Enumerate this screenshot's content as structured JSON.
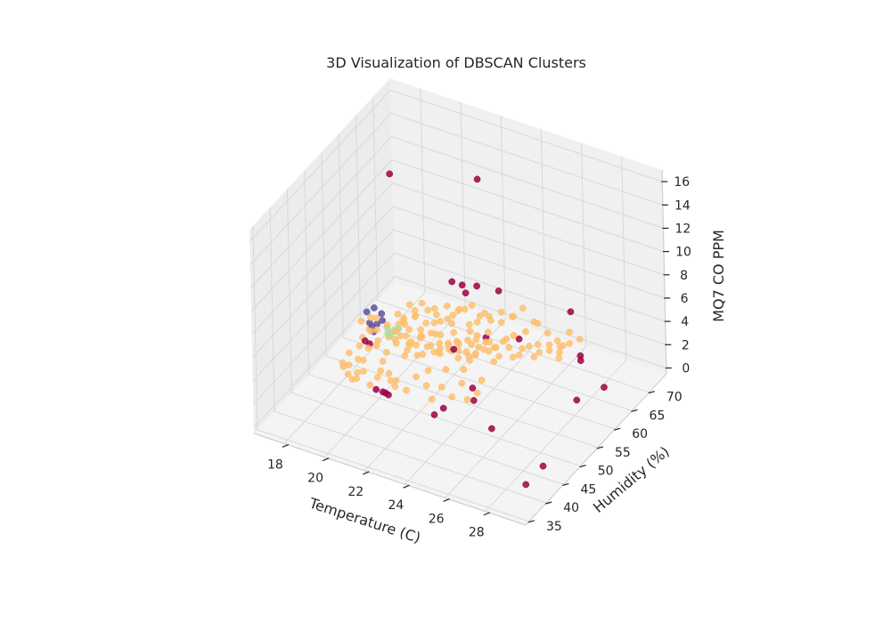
{
  "chart_data": {
    "type": "scatter",
    "title": "3D Visualization of DBSCAN Clusters",
    "xlabel": "Temperature (C)",
    "ylabel": "Humidity (%)",
    "zlabel": "MQ7 CO PPM",
    "xlim": [
      16.5,
      30.0
    ],
    "ylim": [
      34.0,
      75.0
    ],
    "zlim": [
      -0.5,
      17.0
    ],
    "x_ticks": [
      18,
      20,
      22,
      24,
      26,
      28
    ],
    "y_ticks": [
      35,
      40,
      45,
      50,
      55,
      60,
      65,
      70
    ],
    "z_ticks": [
      0,
      2,
      4,
      6,
      8,
      10,
      12,
      14,
      16
    ],
    "grid": true,
    "legend": "none",
    "series": [
      {
        "color": "#fdbf6f",
        "points": [
          [
            19.2,
            52.5,
            4.0
          ],
          [
            19.6,
            52.0,
            4.5
          ],
          [
            20.0,
            53.0,
            3.8
          ],
          [
            20.4,
            52.8,
            4.6
          ],
          [
            20.8,
            53.5,
            4.2
          ],
          [
            21.2,
            54.0,
            3.5
          ],
          [
            21.6,
            53.2,
            4.8
          ],
          [
            22.0,
            54.5,
            3.2
          ],
          [
            22.4,
            53.8,
            4.4
          ],
          [
            22.8,
            55.0,
            3.6
          ],
          [
            23.2,
            54.2,
            4.9
          ],
          [
            23.6,
            55.5,
            3.1
          ],
          [
            24.0,
            54.8,
            4.0
          ],
          [
            20.2,
            55.2,
            3.3
          ],
          [
            20.6,
            56.0,
            2.8
          ],
          [
            21.0,
            56.5,
            3.9
          ],
          [
            21.4,
            57.0,
            2.6
          ],
          [
            21.8,
            56.2,
            4.1
          ],
          [
            22.2,
            57.5,
            3.0
          ],
          [
            22.6,
            56.8,
            4.5
          ],
          [
            23.0,
            58.0,
            2.7
          ],
          [
            23.4,
            57.2,
            3.8
          ],
          [
            23.8,
            58.5,
            3.2
          ],
          [
            24.2,
            57.8,
            4.3
          ],
          [
            19.5,
            50.0,
            3.5
          ],
          [
            19.9,
            50.5,
            4.2
          ],
          [
            20.3,
            49.5,
            3.0
          ],
          [
            20.7,
            50.8,
            4.7
          ],
          [
            21.1,
            51.2,
            3.4
          ],
          [
            21.5,
            50.2,
            5.0
          ],
          [
            21.9,
            51.8,
            3.8
          ],
          [
            22.3,
            51.0,
            2.9
          ],
          [
            22.7,
            52.2,
            4.6
          ],
          [
            23.1,
            51.5,
            3.3
          ],
          [
            23.5,
            52.8,
            4.1
          ],
          [
            23.9,
            52.0,
            3.6
          ],
          [
            24.3,
            53.2,
            4.8
          ],
          [
            24.7,
            52.5,
            3.0
          ],
          [
            25.1,
            53.8,
            4.4
          ],
          [
            19.0,
            51.0,
            5.2
          ],
          [
            19.4,
            51.5,
            5.6
          ],
          [
            19.8,
            50.8,
            6.0
          ],
          [
            20.2,
            51.6,
            5.4
          ],
          [
            20.6,
            52.4,
            6.3
          ],
          [
            21.0,
            52.0,
            5.8
          ],
          [
            21.4,
            52.8,
            6.5
          ],
          [
            21.8,
            52.3,
            5.1
          ],
          [
            22.2,
            53.6,
            6.1
          ],
          [
            22.6,
            53.0,
            5.5
          ],
          [
            23.0,
            54.0,
            6.4
          ],
          [
            23.4,
            53.4,
            5.2
          ],
          [
            23.8,
            54.6,
            6.0
          ],
          [
            24.2,
            54.0,
            5.7
          ],
          [
            24.6,
            55.2,
            6.2
          ],
          [
            25.0,
            54.6,
            5.3
          ],
          [
            25.4,
            55.8,
            5.9
          ],
          [
            20.5,
            54.5,
            5.0
          ],
          [
            21.0,
            55.0,
            5.5
          ],
          [
            21.5,
            55.8,
            6.1
          ],
          [
            22.0,
            56.5,
            5.2
          ],
          [
            22.5,
            57.2,
            5.8
          ],
          [
            23.0,
            57.8,
            6.4
          ],
          [
            23.5,
            58.4,
            5.4
          ],
          [
            24.0,
            59.0,
            6.0
          ],
          [
            24.5,
            59.6,
            5.6
          ],
          [
            25.0,
            60.2,
            6.2
          ],
          [
            25.5,
            60.8,
            5.0
          ],
          [
            26.0,
            61.4,
            5.8
          ],
          [
            19.3,
            53.5,
            2.5
          ],
          [
            19.7,
            54.0,
            2.0
          ],
          [
            20.1,
            54.6,
            2.8
          ],
          [
            20.5,
            55.4,
            2.2
          ],
          [
            20.9,
            56.0,
            1.8
          ],
          [
            21.3,
            56.6,
            2.6
          ],
          [
            21.7,
            57.4,
            2.1
          ],
          [
            22.1,
            58.0,
            2.9
          ],
          [
            22.5,
            58.6,
            2.3
          ],
          [
            22.9,
            59.2,
            1.9
          ],
          [
            23.3,
            59.8,
            2.7
          ],
          [
            23.7,
            60.4,
            2.4
          ],
          [
            24.1,
            61.0,
            2.0
          ],
          [
            24.5,
            61.6,
            2.8
          ],
          [
            24.9,
            62.2,
            2.2
          ],
          [
            25.3,
            62.8,
            3.0
          ],
          [
            25.7,
            63.4,
            2.5
          ],
          [
            26.1,
            64.0,
            3.2
          ],
          [
            26.5,
            64.6,
            2.6
          ],
          [
            26.9,
            65.2,
            3.4
          ],
          [
            19.1,
            49.0,
            1.5
          ],
          [
            19.5,
            48.5,
            2.0
          ],
          [
            19.9,
            48.0,
            1.2
          ],
          [
            20.3,
            48.8,
            2.4
          ],
          [
            20.7,
            49.4,
            1.6
          ],
          [
            21.1,
            48.6,
            2.1
          ],
          [
            21.5,
            49.2,
            1.3
          ],
          [
            21.9,
            49.8,
            2.5
          ],
          [
            22.3,
            50.4,
            1.8
          ],
          [
            22.7,
            49.6,
            1.1
          ],
          [
            23.1,
            50.2,
            2.2
          ],
          [
            23.5,
            50.8,
            1.4
          ],
          [
            23.9,
            51.4,
            2.6
          ],
          [
            24.3,
            50.6,
            1.7
          ],
          [
            24.7,
            51.2,
            2.3
          ],
          [
            18.2,
            50.0,
            1.5
          ],
          [
            18.4,
            50.8,
            2.2
          ],
          [
            18.6,
            49.2,
            1.0
          ],
          [
            18.8,
            51.5,
            2.8
          ],
          [
            18.5,
            48.5,
            1.8
          ],
          [
            18.9,
            47.8,
            2.4
          ],
          [
            19.2,
            47.0,
            1.6
          ],
          [
            19.5,
            46.5,
            2.0
          ],
          [
            25.5,
            57.0,
            4.0
          ],
          [
            25.8,
            58.0,
            4.6
          ],
          [
            26.2,
            59.0,
            3.8
          ],
          [
            26.5,
            58.5,
            5.2
          ],
          [
            26.8,
            60.0,
            4.4
          ],
          [
            27.1,
            61.0,
            3.6
          ],
          [
            27.4,
            60.5,
            5.0
          ],
          [
            27.0,
            62.0,
            4.2
          ],
          [
            25.2,
            56.0,
            5.5
          ],
          [
            25.6,
            56.8,
            6.0
          ],
          [
            24.8,
            56.2,
            4.7
          ],
          [
            24.4,
            55.6,
            5.1
          ],
          [
            26.3,
            62.5,
            4.8
          ],
          [
            26.6,
            63.5,
            4.0
          ],
          [
            27.3,
            63.0,
            5.3
          ],
          [
            27.6,
            64.2,
            4.5
          ],
          [
            20.0,
            57.5,
            4.0
          ],
          [
            20.4,
            58.4,
            4.6
          ],
          [
            20.8,
            59.2,
            3.5
          ],
          [
            21.2,
            60.0,
            4.2
          ],
          [
            21.6,
            60.8,
            3.8
          ],
          [
            22.0,
            61.6,
            4.5
          ],
          [
            22.4,
            62.4,
            3.3
          ],
          [
            22.8,
            63.2,
            4.0
          ],
          [
            23.2,
            64.0,
            3.6
          ],
          [
            23.6,
            64.8,
            4.3
          ],
          [
            24.0,
            65.6,
            3.9
          ],
          [
            24.4,
            66.4,
            4.6
          ],
          [
            24.8,
            67.2,
            3.4
          ],
          [
            21.0,
            53.5,
            7.0
          ],
          [
            21.5,
            54.2,
            7.2
          ],
          [
            22.0,
            54.9,
            6.8
          ],
          [
            22.5,
            55.6,
            7.1
          ],
          [
            23.0,
            56.3,
            6.9
          ],
          [
            23.5,
            57.0,
            7.3
          ],
          [
            24.0,
            57.7,
            6.7
          ],
          [
            22.2,
            55.0,
            3.0
          ],
          [
            22.6,
            55.4,
            3.5
          ],
          [
            23.0,
            55.8,
            4.0
          ],
          [
            23.4,
            56.2,
            4.5
          ],
          [
            23.8,
            56.6,
            5.0
          ],
          [
            21.3,
            51.6,
            4.3
          ],
          [
            21.7,
            52.4,
            4.9
          ],
          [
            22.1,
            53.2,
            5.3
          ],
          [
            19.6,
            55.8,
            3.1
          ],
          [
            19.9,
            56.6,
            3.7
          ],
          [
            20.3,
            57.2,
            3.3
          ],
          [
            18.7,
            53.0,
            3.0
          ],
          [
            18.9,
            53.8,
            3.6
          ],
          [
            19.3,
            48.2,
            3.0
          ],
          [
            19.7,
            47.4,
            3.4
          ],
          [
            20.5,
            46.8,
            2.6
          ],
          [
            21.0,
            47.2,
            3.1
          ],
          [
            21.4,
            46.6,
            2.4
          ]
        ]
      },
      {
        "color": "#9e0142",
        "points": [
          [
            19.0,
            60.0,
            15.0
          ],
          [
            22.5,
            65.0,
            15.0
          ],
          [
            26.5,
            68.0,
            5.0
          ],
          [
            28.0,
            62.0,
            4.0
          ],
          [
            28.1,
            61.5,
            3.8
          ],
          [
            29.0,
            55.0,
            3.0
          ],
          [
            29.5,
            60.0,
            2.8
          ],
          [
            29.0,
            45.0,
            0.5
          ],
          [
            29.0,
            40.0,
            0.5
          ],
          [
            27.0,
            42.0,
            3.5
          ],
          [
            23.0,
            48.5,
            0.3
          ],
          [
            23.2,
            50.0,
            0.5
          ],
          [
            24.2,
            53.0,
            0.8
          ],
          [
            23.8,
            55.0,
            1.0
          ],
          [
            19.0,
            52.0,
            3.2
          ],
          [
            19.4,
            51.0,
            3.5
          ],
          [
            20.2,
            48.0,
            1.0
          ],
          [
            20.5,
            48.2,
            0.9
          ],
          [
            20.6,
            48.4,
            0.8
          ],
          [
            20.9,
            47.5,
            1.1
          ],
          [
            22.0,
            60.0,
            7.5
          ],
          [
            22.3,
            61.2,
            7.0
          ],
          [
            22.8,
            62.5,
            6.8
          ],
          [
            23.8,
            63.0,
            6.8
          ],
          [
            22.5,
            61.0,
            6.5
          ],
          [
            24.0,
            58.0,
            4.5
          ],
          [
            22.9,
            55.0,
            3.8
          ],
          [
            25.3,
            60.0,
            4.5
          ]
        ]
      },
      {
        "color": "#5e4fa2",
        "points": [
          [
            19.2,
            53.0,
            4.2
          ],
          [
            19.4,
            53.2,
            4.5
          ],
          [
            19.0,
            53.4,
            4.3
          ],
          [
            19.6,
            53.6,
            4.8
          ],
          [
            18.8,
            53.8,
            5.0
          ],
          [
            19.3,
            52.8,
            3.9
          ],
          [
            19.5,
            54.0,
            5.2
          ],
          [
            19.1,
            54.2,
            5.4
          ]
        ]
      },
      {
        "color": "#abdda4",
        "points": [
          [
            20.1,
            53.0,
            4.0
          ],
          [
            20.3,
            53.2,
            4.4
          ],
          [
            20.0,
            52.8,
            4.2
          ],
          [
            20.4,
            53.4,
            4.6
          ],
          [
            20.2,
            53.6,
            4.3
          ],
          [
            20.5,
            53.0,
            4.8
          ],
          [
            19.9,
            53.2,
            4.5
          ]
        ]
      }
    ]
  }
}
